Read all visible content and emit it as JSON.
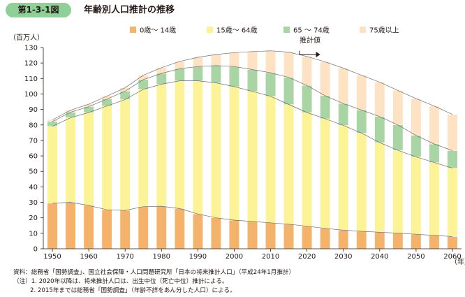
{
  "header": {
    "figure_number": "第1-3-1図",
    "title": "年齢別人口推計の推移"
  },
  "chart_data": {
    "type": "bar",
    "stacked": true,
    "unit_label": "（百万人）",
    "x_unit_label": "（年）",
    "ylim": [
      0,
      130
    ],
    "yticks": [
      0,
      10,
      20,
      30,
      40,
      50,
      60,
      70,
      80,
      90,
      100,
      110,
      120,
      130
    ],
    "xtick_labels": [
      "1950",
      "1960",
      "1970",
      "1980",
      "1990",
      "2000",
      "2010",
      "2020",
      "2030",
      "2040",
      "2050",
      "2060"
    ],
    "categories": [
      "1950",
      "1955",
      "1960",
      "1965",
      "1970",
      "1975",
      "1980",
      "1985",
      "1990",
      "1995",
      "2000",
      "2005",
      "2010",
      "2015",
      "2020",
      "2025",
      "2030",
      "2035",
      "2040",
      "2045",
      "2050",
      "2055",
      "2060"
    ],
    "projection_start": "2020",
    "projection_label": "推計値",
    "grid": false,
    "legend_position": "top",
    "series": [
      {
        "name": "0歳〜 14歳",
        "color": "#f4b26b",
        "values": [
          29.4,
          30.0,
          28.0,
          25.2,
          24.8,
          27.2,
          27.5,
          26.0,
          22.5,
          20.0,
          18.5,
          17.6,
          16.8,
          15.9,
          14.6,
          13.2,
          12.0,
          11.3,
          10.7,
          10.1,
          9.4,
          8.6,
          7.9
        ]
      },
      {
        "name": "15歳〜 64歳",
        "color": "#fcf397",
        "values": [
          49.7,
          54.7,
          60.0,
          67.0,
          71.6,
          75.8,
          78.8,
          82.5,
          86.0,
          87.2,
          86.2,
          84.1,
          81.7,
          77.3,
          73.4,
          70.8,
          67.7,
          63.4,
          57.9,
          53.5,
          50.0,
          47.1,
          44.2
        ]
      },
      {
        "name": "65 〜 74歳",
        "color": "#a9d5a5",
        "values": [
          3.1,
          3.5,
          3.8,
          4.5,
          5.4,
          6.3,
          7.0,
          7.8,
          9.2,
          11.1,
          13.0,
          14.1,
          15.2,
          17.5,
          17.5,
          14.9,
          14.1,
          14.9,
          16.8,
          16.4,
          13.8,
          12.0,
          11.3
        ]
      },
      {
        "name": "75歳以上",
        "color": "#fde3c3",
        "values": [
          1.1,
          1.3,
          1.6,
          1.9,
          2.2,
          2.8,
          3.7,
          4.7,
          6.0,
          7.2,
          9.0,
          11.6,
          14.2,
          16.3,
          18.7,
          21.8,
          22.9,
          22.5,
          22.2,
          22.3,
          23.8,
          24.5,
          23.4
        ]
      }
    ]
  },
  "notes": {
    "source": "資料：総務省「国勢調査」、国立社会保障・人口問題研究所「日本の将来推計人口」（平成24年1月推計）",
    "note1": "（注）1. 2020年以降は、将来推計人口は、出生中位（死亡中位）推計による。",
    "note2": "2. 2015年までは総務省「国勢調査」（年齢不詳をあん分した人口）による。"
  }
}
